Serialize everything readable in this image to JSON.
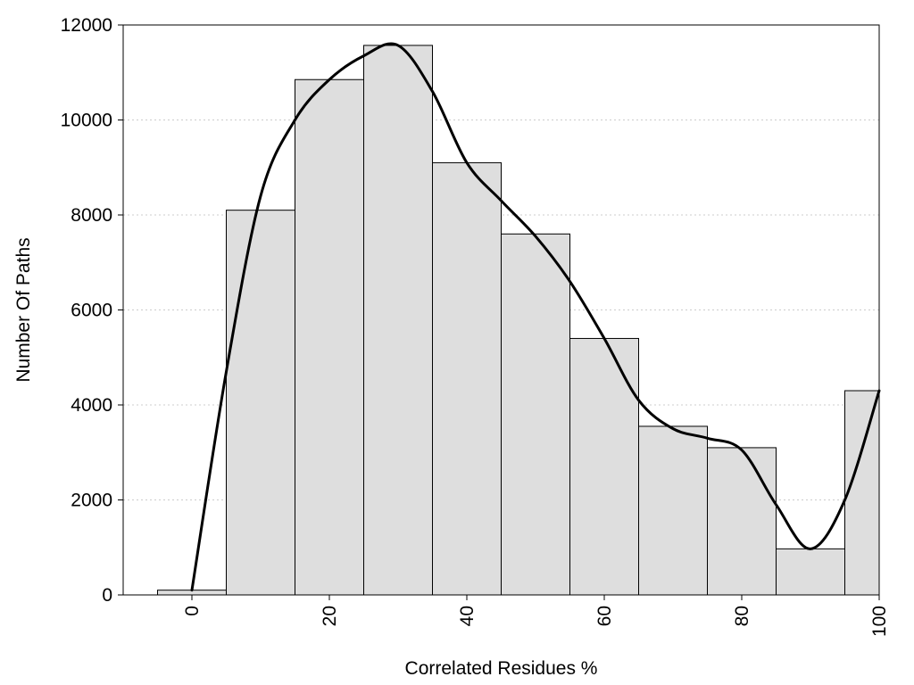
{
  "chart_data": {
    "type": "bar",
    "xlabel": "Correlated Residues %",
    "ylabel": "Number Of Paths",
    "xlim": [
      -10,
      100
    ],
    "ylim": [
      0,
      12000
    ],
    "x_ticks": [
      0,
      20,
      40,
      60,
      80,
      100
    ],
    "y_ticks": [
      0,
      2000,
      4000,
      6000,
      8000,
      10000,
      12000
    ],
    "grid": "horizontal dotted",
    "bin_width": 10,
    "bins": [
      {
        "center": 0,
        "value": 100
      },
      {
        "center": 10,
        "value": 8100
      },
      {
        "center": 20,
        "value": 10850
      },
      {
        "center": 30,
        "value": 11570
      },
      {
        "center": 40,
        "value": 9100
      },
      {
        "center": 50,
        "value": 7600
      },
      {
        "center": 60,
        "value": 5400
      },
      {
        "center": 70,
        "value": 3550
      },
      {
        "center": 80,
        "value": 3100
      },
      {
        "center": 90,
        "value": 970
      },
      {
        "center": 100,
        "value": 4300
      }
    ],
    "curve": {
      "x": [
        0,
        5,
        10,
        15,
        20,
        25,
        30,
        35,
        40,
        45,
        50,
        55,
        60,
        65,
        70,
        75,
        80,
        85,
        90,
        95,
        100
      ],
      "y": [
        100,
        4700,
        8400,
        10000,
        10850,
        11350,
        11570,
        10600,
        9100,
        8300,
        7550,
        6600,
        5400,
        4100,
        3500,
        3300,
        3050,
        1900,
        970,
        2000,
        4300
      ]
    },
    "colors": {
      "bar_fill": "#dedede",
      "bar_stroke": "#000000",
      "curve": "#000000",
      "grid": "#cccccc"
    }
  }
}
